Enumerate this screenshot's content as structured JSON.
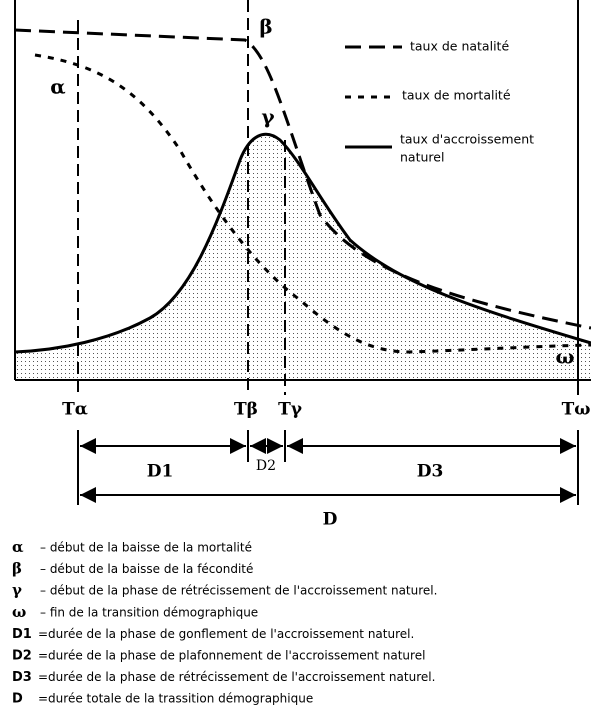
{
  "curves": {
    "greek": {
      "alpha": "α",
      "beta": "β",
      "gamma": "γ",
      "omega": "ω"
    }
  },
  "legend": {
    "natality": "taux de natalité",
    "mortality": "taux de mortalité",
    "growth": [
      "taux d'accroissement",
      "naturel"
    ]
  },
  "axis": {
    "ticks": [
      "Tα",
      "Tβ",
      "Tγ",
      "Tω"
    ]
  },
  "durations": {
    "d1": "D1",
    "d2": "D2",
    "d3": "D3",
    "d": "D"
  },
  "key": [
    {
      "symbol": "α",
      "text": "– début de la baisse de la mortalité"
    },
    {
      "symbol": "β",
      "text": "– début de la baisse de la fécondité"
    },
    {
      "symbol": "γ",
      "text": "– début de la phase de rétrécissement de l'accroissement naturel."
    },
    {
      "symbol": "ω",
      "text": "– fin de la transition démographique"
    },
    {
      "symbol": "D1",
      "text": "=durée de la phase de gonflement de l'accroissement naturel."
    },
    {
      "symbol": "D2",
      "text": "=durée de la phase de plafonnement de l'accroissement naturel"
    },
    {
      "symbol": "D3",
      "text": "=durée de la phase de rétrécissement de l'accroissement naturel."
    },
    {
      "symbol": "D",
      "text": "=durée totale de la trassition démographique"
    }
  ]
}
